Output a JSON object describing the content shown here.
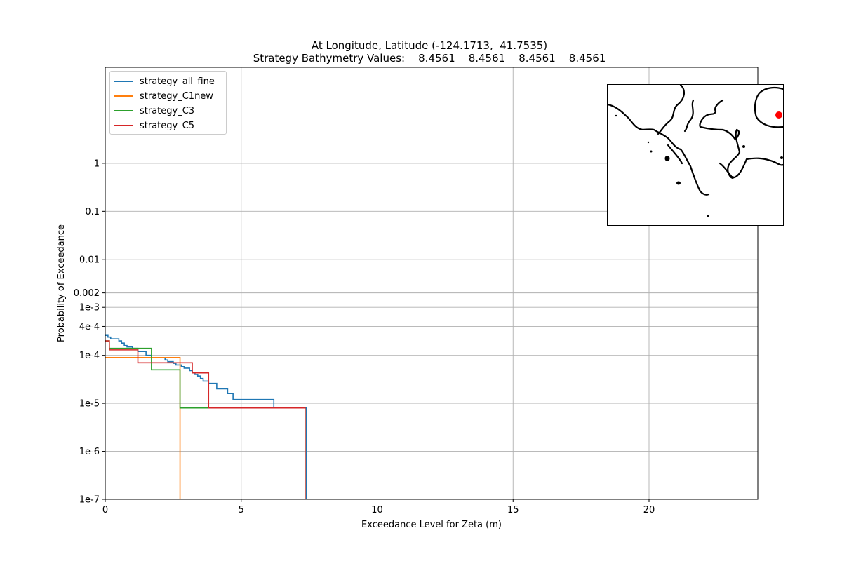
{
  "title_line1": "At Longitude, Latitude (-124.1713,  41.7535)",
  "title_line2": "Strategy Bathymetry Values:    8.4561    8.4561    8.4561    8.4561",
  "colors": {
    "strategy_all_fine": "#1f77b4",
    "strategy_C1new": "#ff7f0e",
    "strategy_C3": "#2ca02c",
    "strategy_C5": "#d62728",
    "grid": "#b0b0b0",
    "location_marker": "#ff0000"
  },
  "inset_map": {
    "content": "coastline contour map with location marker",
    "marker_color": "#ff0000"
  },
  "chart_data": {
    "type": "line",
    "step": true,
    "xlabel": "Exceedance Level for Zeta (m)",
    "ylabel": "Probability of Exceedance",
    "xlim": [
      0,
      24
    ],
    "ylim": [
      1e-07,
      100
    ],
    "yscale": "log",
    "grid": true,
    "legend_position": "upper-left",
    "x_ticks": [
      0,
      5,
      10,
      15,
      20
    ],
    "x_tick_labels": [
      "0",
      "5",
      "10",
      "15",
      "20"
    ],
    "y_ticks": [
      1e-07,
      1e-06,
      1e-05,
      0.0001,
      0.0004,
      0.001,
      0.002,
      0.01,
      0.1,
      1
    ],
    "y_tick_labels": [
      "1e-7",
      "1e-6",
      "1e-5",
      "1e-4",
      "4e-4",
      "1e-3",
      "0.002",
      "0.01",
      "0.1",
      "1"
    ],
    "series": [
      {
        "name": "strategy_all_fine",
        "x": [
          0,
          0.1,
          0.2,
          0.5,
          0.6,
          0.7,
          0.8,
          1.0,
          1.2,
          1.5,
          1.7,
          2.2,
          2.3,
          2.5,
          2.6,
          2.8,
          2.9,
          3.1,
          3.2,
          3.3,
          3.4,
          3.5,
          3.6,
          3.8,
          4.1,
          4.5,
          4.7,
          6.2,
          6.2,
          7.4,
          7.4
        ],
        "y": [
          0.00026,
          0.00024,
          0.00022,
          0.0002,
          0.00018,
          0.00016,
          0.00015,
          0.00014,
          0.00012,
          0.0001,
          9e-05,
          8e-05,
          7.4e-05,
          6.8e-05,
          6.3e-05,
          5.8e-05,
          5.4e-05,
          4.8e-05,
          4.3e-05,
          4e-05,
          3.7e-05,
          3.3e-05,
          2.9e-05,
          2.6e-05,
          2e-05,
          1.6e-05,
          1.2e-05,
          1.2e-05,
          8e-06,
          4e-06,
          1e-07
        ]
      },
      {
        "name": "strategy_C1new",
        "x": [
          0,
          1.1,
          2.75,
          2.75
        ],
        "y": [
          9e-05,
          9e-05,
          9e-05,
          1e-07
        ]
      },
      {
        "name": "strategy_C3",
        "x": [
          0,
          0.15,
          1.7,
          2.75,
          3.8,
          7.35,
          7.35
        ],
        "y": [
          0.0002,
          0.00014,
          5e-05,
          8e-06,
          8e-06,
          8e-06,
          1e-07
        ]
      },
      {
        "name": "strategy_C5",
        "x": [
          0,
          0.15,
          1.2,
          3.2,
          3.8,
          7.35,
          7.35
        ],
        "y": [
          0.0002,
          0.00013,
          7e-05,
          4.3e-05,
          8e-06,
          8e-06,
          1e-07
        ]
      }
    ]
  }
}
